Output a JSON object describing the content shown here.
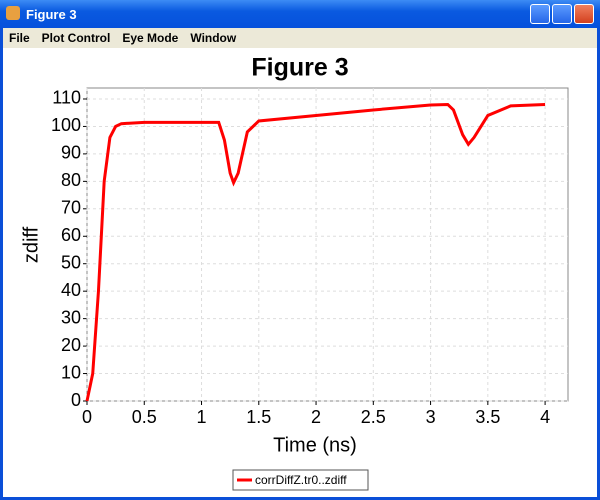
{
  "window": {
    "title": "Figure 3"
  },
  "menu": [
    "File",
    "Plot Control",
    "Eye Mode",
    "Window"
  ],
  "chart_data": {
    "type": "line",
    "title": "Figure 3",
    "x_label": "Time (ns)",
    "y_label": "zdiff",
    "x": [
      0,
      0.05,
      0.1,
      0.15,
      0.2,
      0.25,
      0.3,
      0.5,
      1.0,
      1.15,
      1.2,
      1.25,
      1.28,
      1.32,
      1.4,
      1.5,
      2,
      2.5,
      3,
      3.15,
      3.2,
      3.28,
      3.33,
      3.38,
      3.5,
      3.7,
      4
    ],
    "series": [
      {
        "name": "corrDiffZ.tr0..zdiff",
        "color": "#ff0000",
        "values": [
          0,
          10,
          40,
          80,
          96,
          100,
          101,
          101.5,
          101.5,
          101.5,
          95,
          83,
          79.5,
          83,
          98,
          102,
          104,
          106,
          107.8,
          108,
          106,
          97,
          93.5,
          96,
          104,
          107.5,
          108
        ]
      }
    ],
    "xlim": [
      0,
      4.2
    ],
    "ylim": [
      0,
      114
    ],
    "xticks": [
      0,
      0.5,
      1,
      1.5,
      2,
      2.5,
      3,
      3.5,
      4
    ],
    "yticks": [
      0,
      10,
      20,
      30,
      40,
      50,
      60,
      70,
      80,
      90,
      100,
      110
    ],
    "grid": true,
    "legend": "bottom"
  }
}
